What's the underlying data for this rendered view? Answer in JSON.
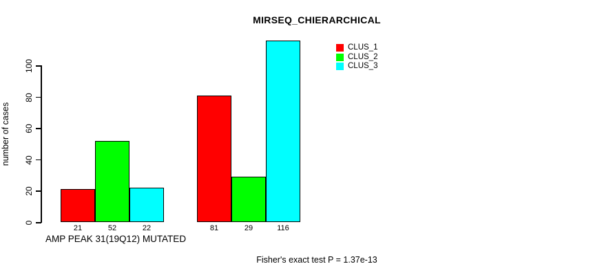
{
  "title": "MIRSEQ_CHIERARCHICAL",
  "ylabel": "number of cases",
  "xlabel": "AMP PEAK 31(19Q12) MUTATED",
  "footer": "Fisher's exact test P = 1.37e-13",
  "legend": {
    "items": [
      {
        "label": "CLUS_1",
        "color": "#FF0000"
      },
      {
        "label": "CLUS_2",
        "color": "#00FF00"
      },
      {
        "label": "CLUS_3",
        "color": "#00FFFF"
      }
    ]
  },
  "chart_data": {
    "type": "bar",
    "title": "MIRSEQ_CHIERARCHICAL",
    "xlabel": "AMP PEAK 31(19Q12) MUTATED",
    "ylabel": "number of cases",
    "annotation": "Fisher's exact test P = 1.37e-13",
    "groups": 2,
    "series": [
      {
        "name": "CLUS_1",
        "color": "#FF0000",
        "values": [
          21,
          81
        ]
      },
      {
        "name": "CLUS_2",
        "color": "#00FF00",
        "values": [
          52,
          29
        ]
      },
      {
        "name": "CLUS_3",
        "color": "#00FFFF",
        "values": [
          22,
          116
        ]
      }
    ],
    "value_labels_shown": true,
    "yticks": [
      0,
      20,
      40,
      60,
      80,
      100
    ],
    "ylim": [
      0,
      116
    ],
    "grid": false,
    "legend_position": "top-right"
  }
}
